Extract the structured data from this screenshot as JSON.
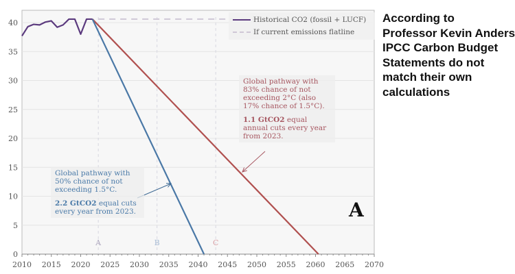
{
  "chart_data": {
    "type": "line",
    "title": "",
    "xlabel": "",
    "ylabel": "",
    "xlim": [
      2010,
      2070
    ],
    "ylim": [
      0,
      42
    ],
    "x_ticks": [
      2010,
      2015,
      2020,
      2025,
      2030,
      2035,
      2040,
      2045,
      2050,
      2055,
      2060,
      2065,
      2070
    ],
    "y_ticks": [
      0,
      5,
      10,
      15,
      20,
      25,
      30,
      35,
      40
    ],
    "grid": true,
    "legend_position": "top-right",
    "series": [
      {
        "name": "Historical CO2 (fossil + LUCF)",
        "color": "#5b3a7e",
        "style": "solid",
        "x": [
          2010,
          2011,
          2012,
          2013,
          2014,
          2015,
          2016,
          2017,
          2018,
          2019,
          2020,
          2021,
          2022
        ],
        "y": [
          37.7,
          39.3,
          39.7,
          39.6,
          40.1,
          40.3,
          39.2,
          39.6,
          40.6,
          40.6,
          38.0,
          40.6,
          40.6
        ]
      },
      {
        "name": "If current emissions flatline",
        "color": "#cfc7d6",
        "style": "dashed",
        "x": [
          2023,
          2053
        ],
        "y": [
          40.6,
          40.6
        ]
      },
      {
        "color": "#4a78a6",
        "style": "solid",
        "x": [
          2022,
          2041
        ],
        "y": [
          40.6,
          0
        ]
      },
      {
        "color": "#b0504f",
        "style": "solid",
        "x": [
          2022,
          2060.5
        ],
        "y": [
          40.6,
          0
        ]
      }
    ],
    "markers": [
      {
        "label": "A",
        "x": 2023,
        "color": "#b0aac0"
      },
      {
        "label": "B",
        "x": 2033,
        "color": "#a9bdd6"
      },
      {
        "label": "C",
        "x": 2043,
        "color": "#d9a0a5"
      }
    ],
    "annotations": {
      "red": {
        "line1": "Global pathway with 83% chance of not exceeding 2°C (also 17% chance of 1.5°C).",
        "bold": "1.1 GtCO2",
        "rest": " equal annual cuts every year from 2023."
      },
      "blue": {
        "line1": "Global pathway with 50% chance of not exceeding 1.5°C.",
        "bold": "2.2 GtCO2",
        "rest": " equal cuts every year from 2023."
      },
      "panel_letter": "A"
    }
  },
  "caption": {
    "lines": [
      "According to",
      "Professor Kevin Anderson",
      "IPCC Carbon Budget",
      "Statements do not",
      "match their own",
      "calculations"
    ]
  }
}
